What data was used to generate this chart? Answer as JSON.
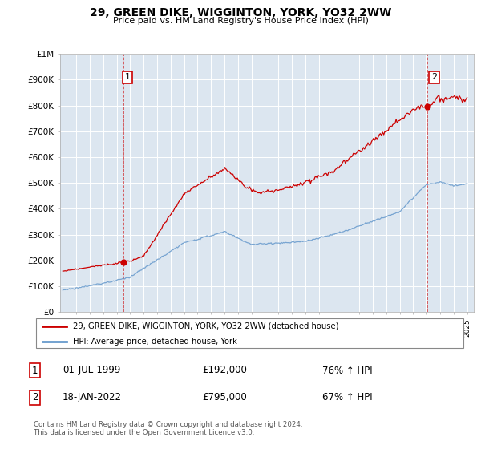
{
  "title": "29, GREEN DIKE, WIGGINTON, YORK, YO32 2WW",
  "subtitle": "Price paid vs. HM Land Registry's House Price Index (HPI)",
  "legend_label_red": "29, GREEN DIKE, WIGGINTON, YORK, YO32 2WW (detached house)",
  "legend_label_blue": "HPI: Average price, detached house, York",
  "sale1_date": "01-JUL-1999",
  "sale1_price": 192000,
  "sale1_hpi": "76% ↑ HPI",
  "sale2_date": "18-JAN-2022",
  "sale2_price": 795000,
  "sale2_hpi": "67% ↑ HPI",
  "footer": "Contains HM Land Registry data © Crown copyright and database right 2024.\nThis data is licensed under the Open Government Licence v3.0.",
  "red_color": "#cc0000",
  "blue_color": "#6699cc",
  "marker1_year": 1999.5,
  "marker1_price": 192000,
  "marker2_year": 2022.04,
  "marker2_price": 795000,
  "ylim": [
    0,
    1000000
  ],
  "xlim_left": 1994.8,
  "xlim_right": 2025.5,
  "plot_bg_color": "#dce6f0",
  "fig_bg_color": "#ffffff"
}
